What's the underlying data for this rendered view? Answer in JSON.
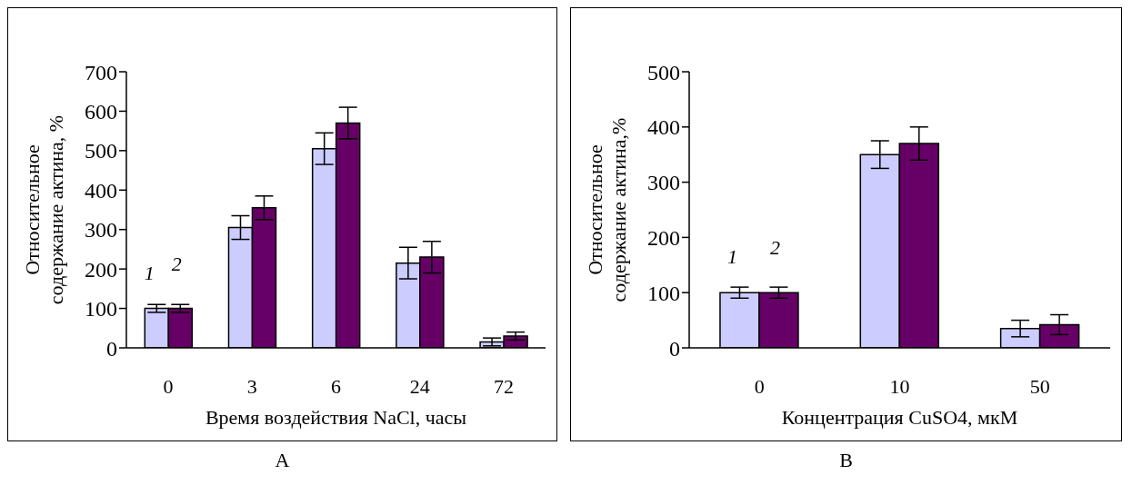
{
  "chart_data": [
    {
      "type": "bar",
      "categories": [
        "0",
        "3",
        "6",
        "24",
        "72"
      ],
      "xlabel": "Время воздействия  NaCl, часы",
      "ylabel": "Относительное содержание актина, %",
      "ylim": [
        0,
        700
      ],
      "yticks": [
        0,
        100,
        200,
        300,
        400,
        500,
        600,
        700
      ],
      "grid": false,
      "legend": false,
      "annotations": [
        "A"
      ],
      "series": [
        {
          "name": "1",
          "color": "#ccccff",
          "values": [
            100,
            305,
            505,
            215,
            15
          ],
          "errors": [
            10,
            30,
            40,
            40,
            10
          ]
        },
        {
          "name": "2",
          "color": "#660066",
          "values": [
            100,
            355,
            570,
            230,
            30
          ],
          "errors": [
            10,
            30,
            40,
            40,
            10
          ]
        }
      ]
    },
    {
      "type": "bar",
      "categories": [
        "0",
        "10",
        "50"
      ],
      "xlabel": "Концентрация CuSO4, мкМ",
      "ylabel": "Относительное содержание актина,%",
      "ylim": [
        0,
        500
      ],
      "yticks": [
        0,
        100,
        200,
        300,
        400,
        500
      ],
      "grid": false,
      "legend": false,
      "annotations": [
        "B"
      ],
      "series": [
        {
          "name": "1",
          "color": "#ccccff",
          "values": [
            100,
            350,
            35
          ],
          "errors": [
            10,
            25,
            15
          ]
        },
        {
          "name": "2",
          "color": "#660066",
          "values": [
            100,
            370,
            42
          ],
          "errors": [
            10,
            30,
            18
          ]
        }
      ]
    }
  ]
}
